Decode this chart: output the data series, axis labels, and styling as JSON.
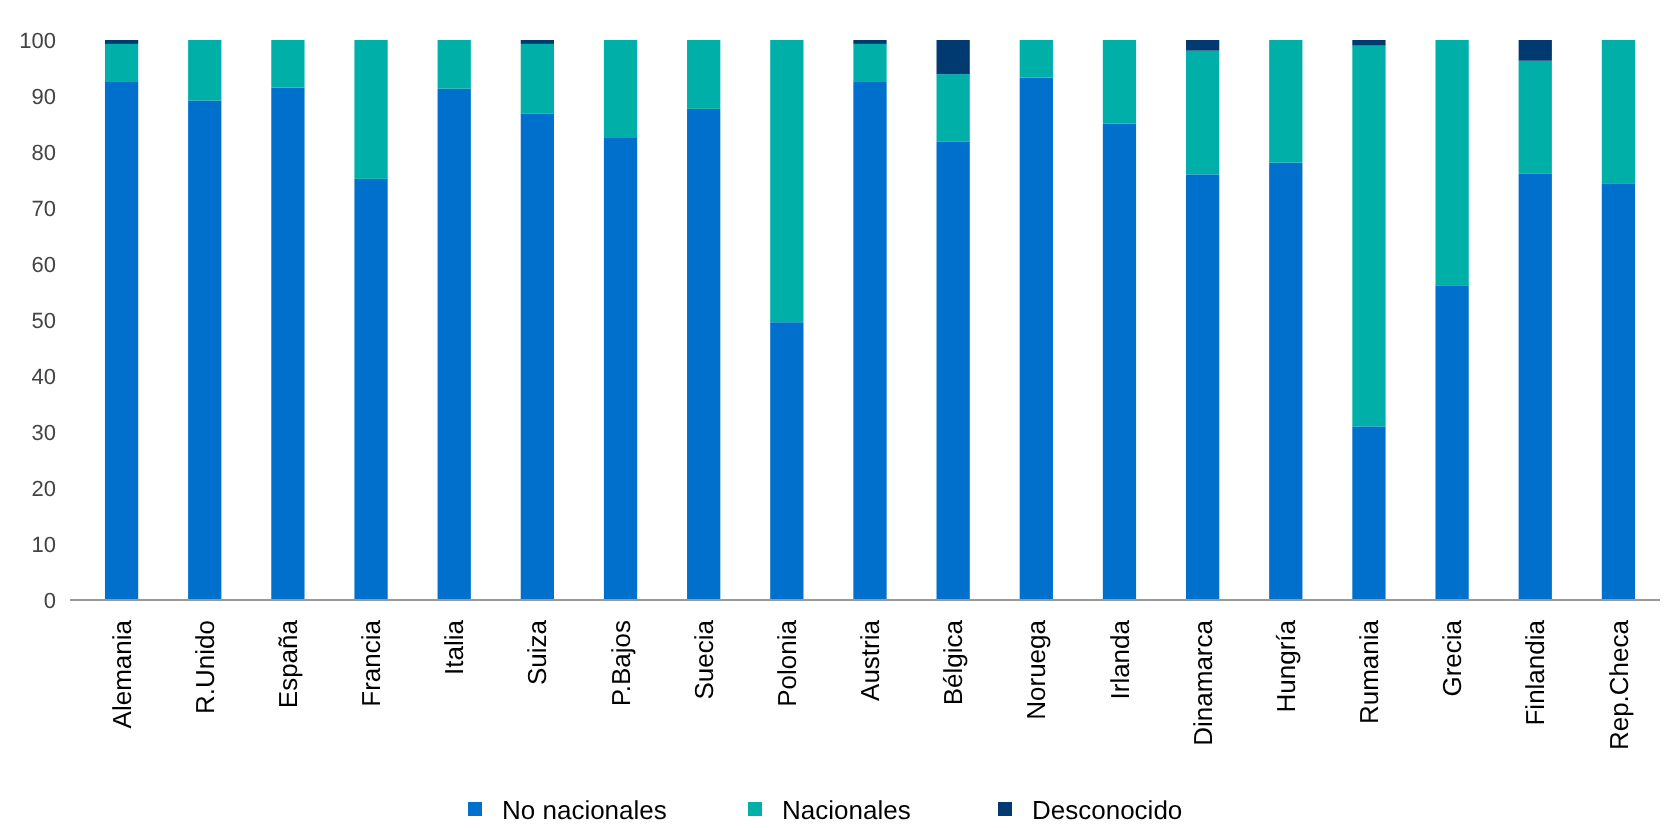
{
  "chart_data": {
    "type": "bar",
    "stacked": true,
    "categories": [
      "Alemania",
      "R.Unido",
      "España",
      "Francia",
      "Italia",
      "Suiza",
      "P.Bajos",
      "Suecia",
      "Polonia",
      "Austria",
      "Bélgica",
      "Noruega",
      "Irlanda",
      "Dinamarca",
      "Hungría",
      "Rumania",
      "Grecia",
      "Finlandia",
      "Rep.Checa"
    ],
    "series": [
      {
        "name": "No nacionales",
        "color": "#0070cc",
        "values": [
          92.5,
          89.2,
          91.5,
          75.2,
          91.3,
          86.9,
          82.5,
          87.7,
          49.6,
          92.5,
          81.9,
          93.3,
          85.1,
          76,
          78.1,
          31,
          56.2,
          76.1,
          74.3
        ]
      },
      {
        "name": "Nacionales",
        "color": "#00b0a8",
        "values": [
          6.8,
          10.8,
          8.5,
          24.8,
          8.7,
          12.4,
          17.5,
          12.3,
          50.4,
          6.8,
          12,
          6.7,
          14.9,
          22.1,
          21.9,
          68,
          43.8,
          20.2,
          25.7
        ]
      },
      {
        "name": "Desconocido",
        "color": "#003a70",
        "values": [
          0.7,
          0,
          0,
          0,
          0,
          0.7,
          0,
          0,
          0,
          0.7,
          6.1,
          0,
          0,
          1.9,
          0,
          1,
          0,
          3.7,
          0
        ]
      }
    ],
    "ylim": [
      0,
      100
    ],
    "yticks": [
      0,
      10,
      20,
      30,
      40,
      50,
      60,
      70,
      80,
      90,
      100
    ],
    "grid": false,
    "legend": "bottom"
  }
}
